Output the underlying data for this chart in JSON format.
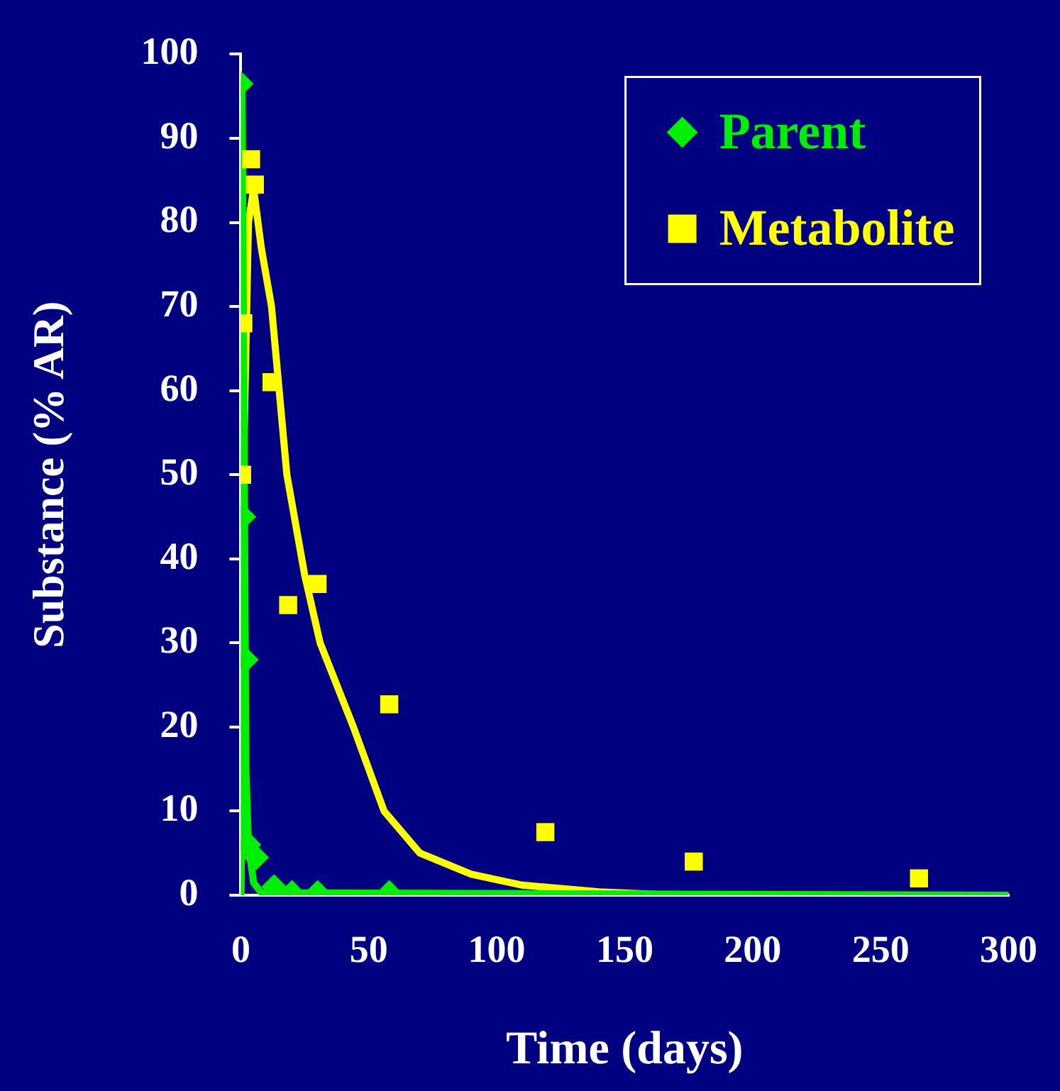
{
  "chart_data": {
    "type": "scatter",
    "xlabel": "Time (days)",
    "ylabel": "Substance (% AR)",
    "xlim": [
      0,
      300
    ],
    "xticks": [
      0,
      50,
      100,
      150,
      200,
      250,
      300
    ],
    "ylim": [
      0,
      100
    ],
    "yticks": [
      0,
      10,
      20,
      30,
      40,
      50,
      60,
      70,
      80,
      90,
      100
    ],
    "grid": false,
    "legend": "top right",
    "series": [
      {
        "name": "Parent",
        "color": "#00ee00",
        "marker": "diamond",
        "x": [
          0,
          1,
          2,
          3,
          6,
          13,
          20,
          30,
          58
        ],
        "values": [
          96.5,
          45,
          28,
          6,
          4.5,
          1,
          0.3,
          0.3,
          0.3
        ]
      },
      {
        "name": "Metabolite",
        "color": "#ffff00",
        "marker": "square",
        "x": [
          0.5,
          1,
          4,
          5.5,
          12,
          18.5,
          30,
          58,
          119,
          177,
          265
        ],
        "values": [
          50,
          68,
          87.5,
          84.5,
          61,
          34.5,
          37,
          22.7,
          7.5,
          4,
          2
        ]
      },
      {
        "type": "line",
        "color": "#00ee00",
        "marker": "none",
        "x": [
          0,
          0.5,
          2,
          3,
          5,
          8,
          300
        ],
        "values": [
          0,
          96.5,
          15,
          6,
          1.5,
          0.3,
          0
        ]
      },
      {
        "type": "line",
        "color": "#ffff00",
        "marker": "none",
        "x": [
          0,
          1,
          3,
          5,
          8,
          12,
          18,
          25,
          31,
          44,
          56,
          70,
          90,
          110,
          140,
          170,
          300
        ],
        "values": [
          0,
          50,
          80,
          84,
          77,
          70,
          50,
          38,
          30,
          20,
          10,
          5,
          2.5,
          1.2,
          0.4,
          0,
          0
        ]
      }
    ]
  }
}
